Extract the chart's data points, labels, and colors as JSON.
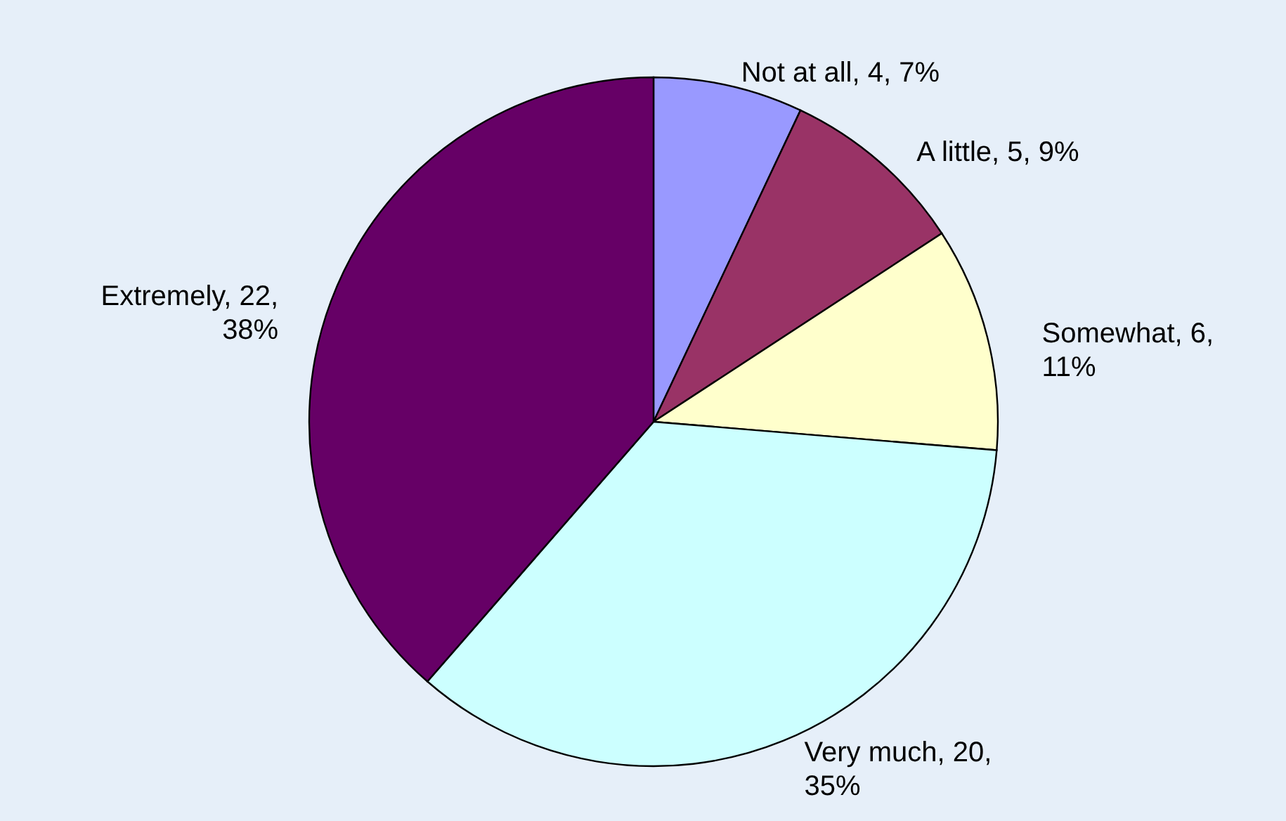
{
  "chart_data": {
    "type": "pie",
    "categories": [
      "Not at all",
      "A little",
      "Somewhat",
      "Very much",
      "Extremely"
    ],
    "values": [
      4,
      5,
      6,
      20,
      22
    ],
    "value_labels": [
      "4, 7%",
      "5, 9%",
      "6, 11%",
      "20, 35%",
      "22, 38%"
    ],
    "colors": [
      "#9999ff",
      "#993366",
      "#ffffcc",
      "#ccffff",
      "#660066"
    ]
  }
}
